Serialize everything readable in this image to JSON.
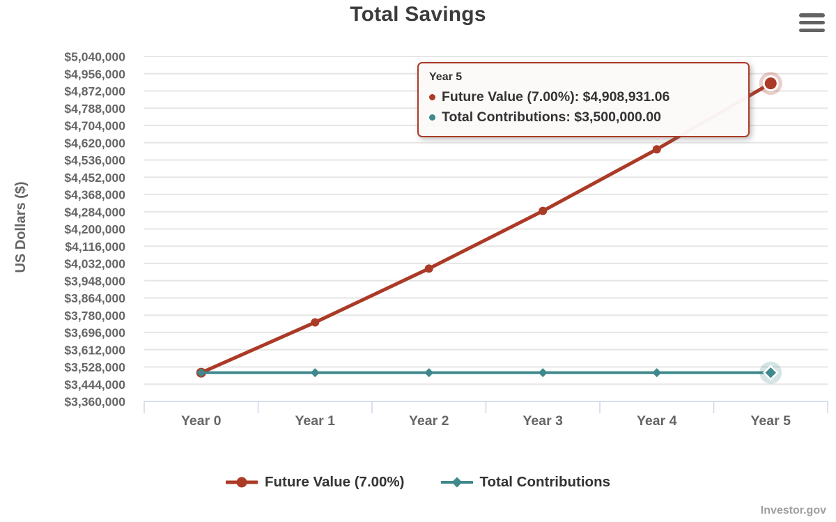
{
  "header": {
    "title": "Total Savings"
  },
  "watermark": "Investor.gov",
  "colors": {
    "future_value": "#ab3a27",
    "contributions": "#3f898c",
    "gridline": "#e6e6e6",
    "axis_line": "#ccd6eb",
    "axis_label": "#666666",
    "legend_text": "#333333"
  },
  "chart_data": {
    "type": "line",
    "title": "Total Savings",
    "xlabel": "",
    "ylabel": "US Dollars ($)",
    "categories": [
      "Year 0",
      "Year 1",
      "Year 2",
      "Year 3",
      "Year 4",
      "Year 5"
    ],
    "ylim": [
      3360000,
      5040000
    ],
    "ytick_step": 84000,
    "ytick_labels": [
      "$5,040,000",
      "$4,956,000",
      "$4,872,000",
      "$4,788,000",
      "$4,704,000",
      "$4,620,000",
      "$4,536,000",
      "$4,452,000",
      "$4,368,000",
      "$4,284,000",
      "$4,200,000",
      "$4,116,000",
      "$4,032,000",
      "$3,948,000",
      "$3,864,000",
      "$3,780,000",
      "$3,696,000",
      "$3,612,000",
      "$3,528,000",
      "$3,444,000",
      "$3,360,000"
    ],
    "grid": true,
    "legend_position": "bottom",
    "highlight_index": 5,
    "series": [
      {
        "name": "Future Value (7.00%)",
        "color": "#ab3a27",
        "marker": "circle",
        "line_width": 5,
        "values": [
          3500000,
          3745000,
          4007150,
          4287650.5,
          4587786.04,
          4908931.06
        ]
      },
      {
        "name": "Total Contributions",
        "color": "#3f898c",
        "marker": "diamond",
        "line_width": 4,
        "values": [
          3500000,
          3500000,
          3500000,
          3500000,
          3500000,
          3500000
        ]
      }
    ]
  },
  "tooltip": {
    "title": "Year 5",
    "items": [
      {
        "text": "Future Value (7.00%): $4,908,931.06",
        "color": "#ab3a27"
      },
      {
        "text": "Total Contributions: $3,500,000.00",
        "color": "#3f898c"
      }
    ]
  },
  "legend": {
    "items": [
      {
        "label": "Future Value (7.00%)",
        "color": "#ab3a27",
        "marker": "circle"
      },
      {
        "label": "Total Contributions",
        "color": "#3f898c",
        "marker": "diamond"
      }
    ]
  }
}
